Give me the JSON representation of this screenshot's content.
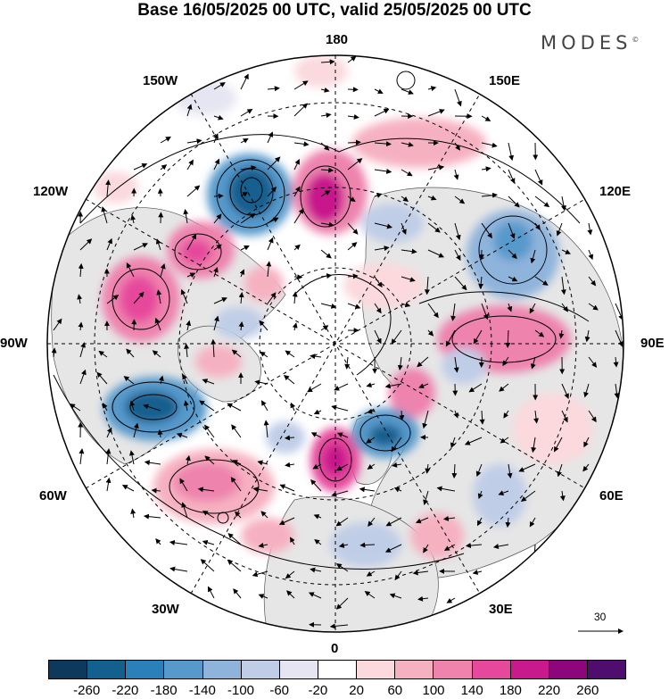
{
  "title": "Base 16/05/2025 00 UTC, valid 25/05/2025 00 UTC",
  "brand": "MODES",
  "brand_mark": "©",
  "longitude_labels": {
    "top": "180",
    "top_left": "150W",
    "top_right": "150E",
    "upper_left": "120W",
    "upper_right": "120E",
    "left": "90W",
    "right": "90E",
    "lower_left": "60W",
    "lower_right": "60E",
    "bottom_left": "30W",
    "bottom_right": "30E",
    "bottom": "0"
  },
  "vector_scale": {
    "value": "30"
  },
  "colorbar": {
    "ticks": [
      "-260",
      "-220",
      "-180",
      "-140",
      "-100",
      "-60",
      "-20",
      "20",
      "60",
      "100",
      "140",
      "180",
      "220",
      "260"
    ],
    "colors": [
      "#0d3a5c",
      "#135f8e",
      "#2a80b9",
      "#5799cb",
      "#8fb4dc",
      "#c0cde7",
      "#e6e6f2",
      "#ffffff",
      "#fbd9dd",
      "#f6b1c1",
      "#ee83ae",
      "#e6499c",
      "#c8198d",
      "#8d067c",
      "#4f0d6e"
    ]
  },
  "colors": {
    "land": "#e6e6e6",
    "ocean": "#ffffff",
    "contour": "#000000"
  }
}
